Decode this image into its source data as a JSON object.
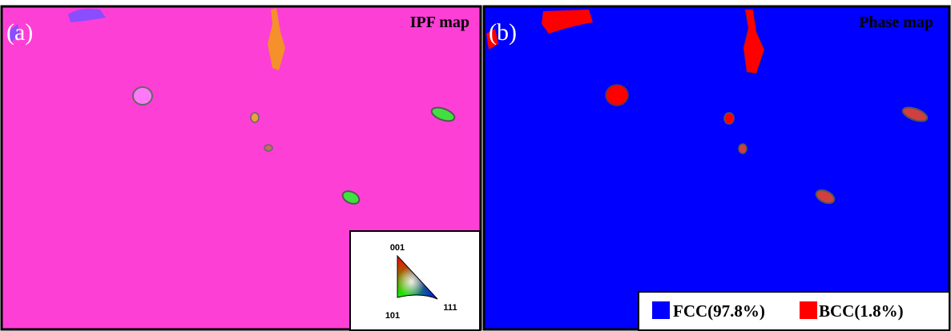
{
  "panels": [
    {
      "label": "(a)",
      "title": "IPF map",
      "key": {
        "top": "001",
        "left": "101",
        "right": "111"
      }
    },
    {
      "label": "(b)",
      "title": "Phase map",
      "legend": [
        "FCC(97.8%)",
        "BCC(1.8%)"
      ]
    }
  ]
}
